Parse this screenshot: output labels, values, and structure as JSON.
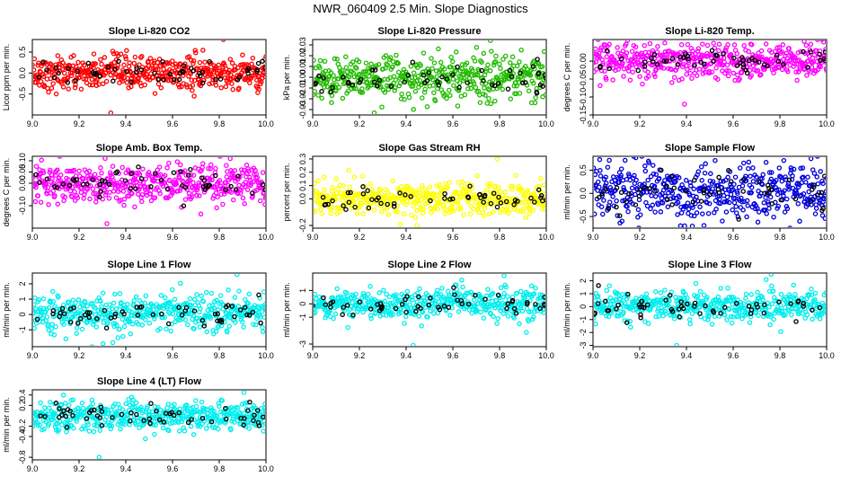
{
  "figure": {
    "title": "NWR_060409  2.5 Min. Slope Diagnostics"
  },
  "chart_data": [
    {
      "type": "scatter",
      "title": "Slope Li-820 CO2",
      "ylabel": "Licor ppm per min.",
      "xlim": [
        9.0,
        10.0
      ],
      "ylim": [
        -1.0,
        0.8
      ],
      "xticks": [
        "9.0",
        "9.2",
        "9.4",
        "9.6",
        "9.8",
        "10.0"
      ],
      "yticks": [
        "-0.5",
        "0.0",
        "0.5"
      ],
      "ytick_values": [
        -0.5,
        0.0,
        0.5
      ],
      "color": "#ff0000",
      "spread": 0.2,
      "extremes": [
        -0.95,
        0.8
      ]
    },
    {
      "type": "scatter",
      "title": "Slope Li-820 Pressure",
      "ylabel": "kPa per min.",
      "xlim": [
        9.0,
        10.0
      ],
      "ylim": [
        -0.035,
        0.035
      ],
      "xticks": [
        "9.0",
        "9.2",
        "9.4",
        "9.6",
        "9.8",
        "10.0"
      ],
      "yticks": [
        "-0.03",
        "-0.02",
        "-0.01",
        "0.00",
        "0.01",
        "0.02",
        "0.03"
      ],
      "ytick_values": [
        -0.03,
        -0.02,
        -0.01,
        0.0,
        0.01,
        0.02,
        0.03
      ],
      "color": "#22bb00",
      "spread": 0.01,
      "extremes": [
        -0.033,
        0.034
      ]
    },
    {
      "type": "scatter",
      "title": "Slope Li-820 Temp.",
      "ylabel": "degrees C per min.",
      "xlim": [
        9.0,
        10.0
      ],
      "ylim": [
        -0.15,
        0.06
      ],
      "xticks": [
        "9.0",
        "9.2",
        "9.4",
        "9.6",
        "9.8",
        "10.0"
      ],
      "yticks": [
        "-0.15",
        "-0.10",
        "-0.05",
        "0.00"
      ],
      "ytick_values": [
        -0.15,
        -0.1,
        -0.05,
        0.0
      ],
      "color": "#ff00ff",
      "spread": 0.025,
      "extremes": [
        -0.12,
        0.055
      ]
    },
    {
      "type": "scatter",
      "title": "Slope Amb. Box Temp.",
      "ylabel": "degrees C per min.",
      "xlim": [
        9.0,
        10.0
      ],
      "ylim": [
        -0.2,
        0.12
      ],
      "xticks": [
        "9.0",
        "9.2",
        "9.4",
        "9.6",
        "9.8",
        "10.0"
      ],
      "yticks": [
        "-0.10",
        "0.00",
        "0.05",
        "0.10"
      ],
      "ytick_values": [
        -0.1,
        0.0,
        0.05,
        0.1
      ],
      "color": "#ff00ff",
      "spread": 0.045,
      "extremes": [
        -0.18,
        0.11
      ]
    },
    {
      "type": "scatter",
      "title": "Slope Gas Stream RH",
      "ylabel": "percent per min.",
      "xlim": [
        9.0,
        10.0
      ],
      "ylim": [
        -0.22,
        0.32
      ],
      "xticks": [
        "9.0",
        "9.2",
        "9.4",
        "9.6",
        "9.8",
        "10.0"
      ],
      "yticks": [
        "-0.2",
        "0.0",
        "0.1",
        "0.2",
        "0.3"
      ],
      "ytick_values": [
        -0.2,
        0.0,
        0.1,
        0.2,
        0.3
      ],
      "color": "#ffff00",
      "spread": 0.06,
      "extremes": [
        -0.2,
        0.3
      ]
    },
    {
      "type": "scatter",
      "title": "Slope Sample Flow",
      "ylabel": "ml/min per min.",
      "xlim": [
        9.0,
        10.0
      ],
      "ylim": [
        -0.75,
        0.8
      ],
      "xticks": [
        "9.0",
        "9.2",
        "9.4",
        "9.6",
        "9.8",
        "10.0"
      ],
      "yticks": [
        "-0.5",
        "0.0",
        "0.5"
      ],
      "ytick_values": [
        -0.5,
        0.0,
        0.5
      ],
      "color": "#0000dd",
      "spread": 0.3,
      "extremes": [
        -0.7,
        0.75
      ]
    },
    {
      "type": "scatter",
      "title": "Slope Line 1 Flow",
      "ylabel": "ml/min per min.",
      "xlim": [
        9.0,
        10.0
      ],
      "ylim": [
        -2.1,
        2.7
      ],
      "xticks": [
        "9.0",
        "9.2",
        "9.4",
        "9.6",
        "9.8",
        "10.0"
      ],
      "yticks": [
        "-1",
        "0",
        "1",
        "2"
      ],
      "ytick_values": [
        -1,
        0,
        1,
        2
      ],
      "color": "#00eeee",
      "spread": 0.6,
      "extremes": [
        -1.9,
        2.6
      ]
    },
    {
      "type": "scatter",
      "title": "Slope Line 2 Flow",
      "ylabel": "ml/min per min.",
      "xlim": [
        9.0,
        10.0
      ],
      "ylim": [
        -3.2,
        2.3
      ],
      "xticks": [
        "9.0",
        "9.2",
        "9.4",
        "9.6",
        "9.8",
        "10.0"
      ],
      "yticks": [
        "-3",
        "-1",
        "0",
        "1"
      ],
      "ytick_values": [
        -3,
        -1,
        0,
        1
      ],
      "color": "#00eeee",
      "spread": 0.55,
      "extremes": [
        -3.1,
        2.1
      ]
    },
    {
      "type": "scatter",
      "title": "Slope Line 3 Flow",
      "ylabel": "ml/min per min.",
      "xlim": [
        9.0,
        10.0
      ],
      "ylim": [
        -3.1,
        2.6
      ],
      "xticks": [
        "9.0",
        "9.2",
        "9.4",
        "9.6",
        "9.8",
        "10.0"
      ],
      "yticks": [
        "-3",
        "-2",
        "-1",
        "0",
        "1",
        "2"
      ],
      "ytick_values": [
        -3,
        -2,
        -1,
        0,
        1,
        2
      ],
      "color": "#00eeee",
      "spread": 0.6,
      "extremes": [
        -3.0,
        2.5
      ]
    },
    {
      "type": "scatter",
      "title": "Slope Line 4 (LT) Flow",
      "ylabel": "ml/min per min.",
      "xlim": [
        9.0,
        10.0
      ],
      "ylim": [
        -0.85,
        0.5
      ],
      "xticks": [
        "9.0",
        "9.2",
        "9.4",
        "9.6",
        "9.8",
        "10.0"
      ],
      "yticks": [
        "-0.8",
        "-0.4",
        "-0.2",
        "0.2",
        "0.4"
      ],
      "ytick_values": [
        -0.8,
        -0.4,
        -0.2,
        0.2,
        0.4
      ],
      "color": "#00eeee",
      "spread": 0.15,
      "extremes": [
        -0.8,
        0.45
      ]
    }
  ]
}
